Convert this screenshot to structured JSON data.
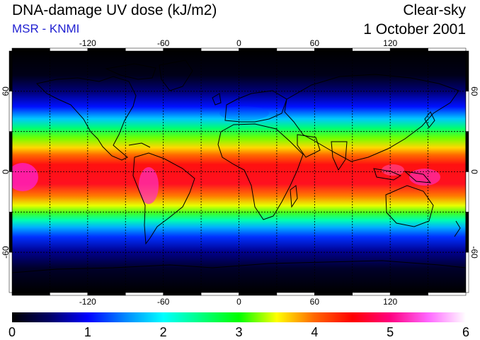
{
  "header": {
    "title": "DNA-damage UV dose (kJ/m2)",
    "source": "MSR - KNMI",
    "sky_condition": "Clear-sky",
    "date": "1 October 2001"
  },
  "map": {
    "lon_range": [
      -180,
      180
    ],
    "lat_range": [
      -90,
      90
    ],
    "lon_ticks": [
      -120,
      -60,
      0,
      60,
      120
    ],
    "lat_ticks": [
      60,
      0,
      -60
    ],
    "lon_tick_labels": [
      "-120",
      "-60",
      "0",
      "60",
      "120"
    ],
    "lat_tick_labels": [
      "60",
      "0",
      "-60"
    ],
    "lon_grid": [
      -150,
      -120,
      -90,
      -60,
      -30,
      0,
      30,
      60,
      90,
      120,
      150
    ],
    "lat_grid": [
      -60,
      -30,
      0,
      30,
      60
    ],
    "grid": true
  },
  "colorbar": {
    "min": 0,
    "max": 6,
    "labels": [
      "0",
      "1",
      "2",
      "3",
      "4",
      "5",
      "6"
    ],
    "stops": [
      {
        "value": 0.0,
        "color": "#000000"
      },
      {
        "value": 0.5,
        "color": "#000066"
      },
      {
        "value": 1.0,
        "color": "#0000ff"
      },
      {
        "value": 1.5,
        "color": "#0088ff"
      },
      {
        "value": 2.0,
        "color": "#00ffff"
      },
      {
        "value": 2.5,
        "color": "#00ff80"
      },
      {
        "value": 3.0,
        "color": "#00ff00"
      },
      {
        "value": 3.5,
        "color": "#ffff00"
      },
      {
        "value": 4.0,
        "color": "#ff6600"
      },
      {
        "value": 4.5,
        "color": "#ff0000"
      },
      {
        "value": 5.0,
        "color": "#ff0080"
      },
      {
        "value": 5.5,
        "color": "#ff66ff"
      },
      {
        "value": 6.0,
        "color": "#ffffff"
      }
    ]
  }
}
